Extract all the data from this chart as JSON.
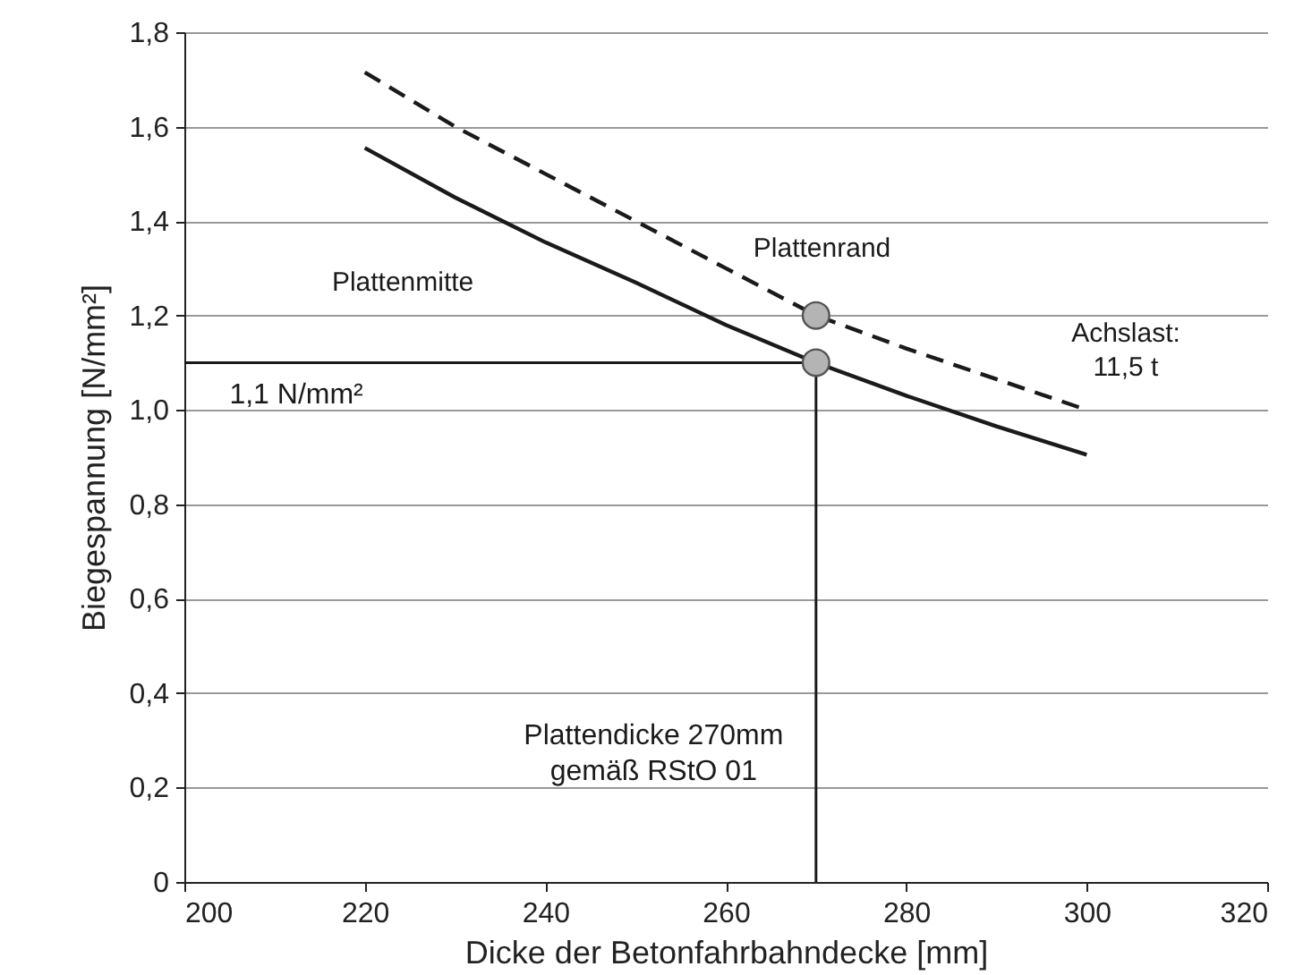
{
  "chart_data": {
    "type": "line",
    "xlabel": "Dicke der Betonfahrbahndecke [mm]",
    "ylabel": "Biegespannung [N/mm²]",
    "x": [
      220,
      230,
      240,
      250,
      260,
      270,
      280,
      290,
      300
    ],
    "series": [
      {
        "name": "Plattenmitte",
        "color": "#1a1a1a",
        "line_style": "solid",
        "values": [
          1.555,
          1.45,
          1.355,
          1.27,
          1.18,
          1.1,
          1.03,
          0.965,
          0.905
        ]
      },
      {
        "name": "Plattenrand",
        "color": "#1a1a1a",
        "line_style": "dashed",
        "values": [
          1.715,
          1.6,
          1.5,
          1.4,
          1.3,
          1.2,
          1.13,
          1.065,
          1.0
        ]
      },
      {
        "type": "scatter",
        "color": "#b4b4b4",
        "marker": "circle",
        "x": [
          270,
          270
        ],
        "values": [
          1.2,
          1.1
        ]
      }
    ],
    "xlim": [
      200,
      320
    ],
    "xticks": [
      200,
      220,
      240,
      260,
      280,
      300,
      320
    ],
    "ylim": [
      0,
      1.8
    ],
    "yticks": [
      0,
      {
        "value": 0.2,
        "label": "0,2"
      },
      {
        "value": 0.4,
        "label": "0,4"
      },
      {
        "value": 0.6,
        "label": "0,6"
      },
      {
        "value": 0.8,
        "label": "0,8"
      },
      {
        "value": 1,
        "label": "1,0"
      },
      {
        "value": 1.2,
        "label": "1,2"
      },
      {
        "value": 1.4,
        "label": "1,4"
      },
      {
        "value": 1.6,
        "label": "1,6"
      },
      {
        "value": 1.8,
        "label": "1,8"
      }
    ],
    "grid": "y",
    "ref_lines": [
      {
        "axis": "y",
        "value": 1.1,
        "label": "1,1 N/mm²"
      },
      {
        "axis": "x",
        "value": 270,
        "label": "Plattendicke 270mm\ngemäß RStO 01"
      }
    ],
    "annotations": [
      "Achslast:\n11,5 t"
    ]
  }
}
